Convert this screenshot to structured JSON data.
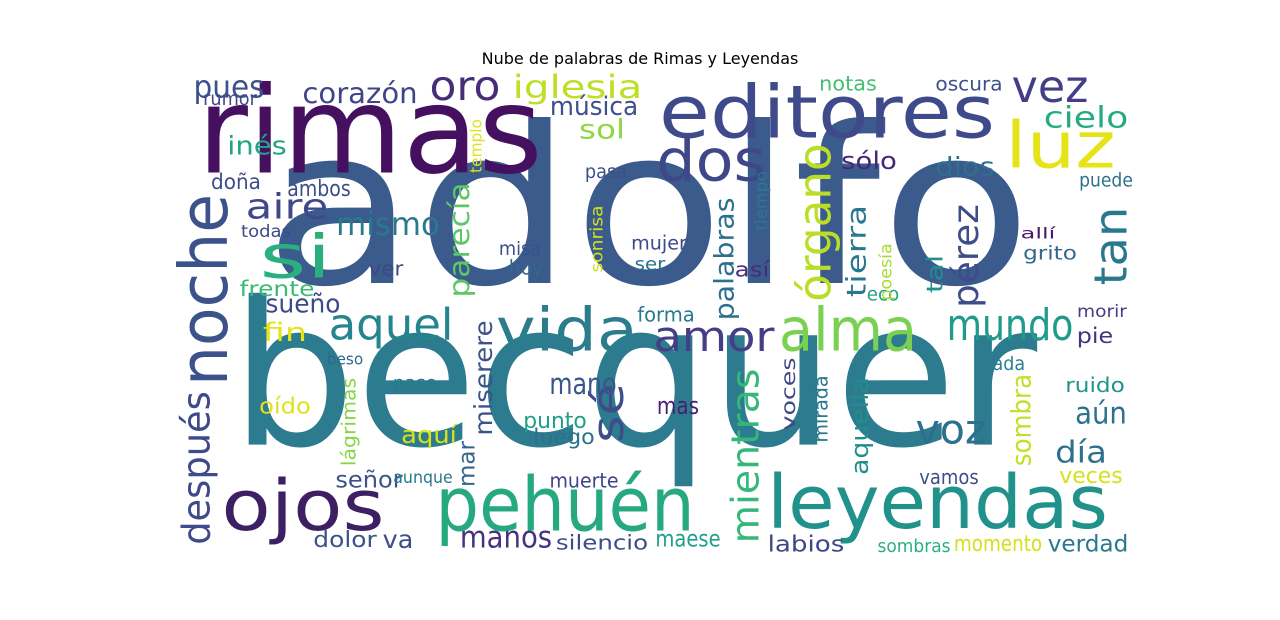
{
  "title": "Nube de palabras de Rimas y Leyendas",
  "words": [
    {
      "text": "adolfo",
      "color": "#3b5b8c"
    },
    {
      "text": "becquer",
      "color": "#2c7b8e"
    },
    {
      "text": "rimas",
      "color": "#45105f"
    },
    {
      "text": "editores",
      "color": "#3f4a8a"
    },
    {
      "text": "luz",
      "color": "#e6e419"
    },
    {
      "text": "pehuén",
      "color": "#26a880"
    },
    {
      "text": "leyendas",
      "color": "#21918c"
    },
    {
      "text": "ojos",
      "color": "#3d1f63"
    },
    {
      "text": "alma",
      "color": "#7ad151"
    },
    {
      "text": "vida",
      "color": "#2b7d8e"
    },
    {
      "text": "noche",
      "color": "#3b528b"
    },
    {
      "text": "dos",
      "color": "#3f4788"
    },
    {
      "text": "si",
      "color": "#2ab07f"
    },
    {
      "text": "voz",
      "color": "#2d708e"
    },
    {
      "text": "vez",
      "color": "#433e85"
    },
    {
      "text": "oro",
      "color": "#472c7a"
    },
    {
      "text": "pues",
      "color": "#3b518b"
    },
    {
      "text": "corazón",
      "color": "#414487"
    },
    {
      "text": "iglesia",
      "color": "#bddf26"
    },
    {
      "text": "aquel",
      "color": "#25858e"
    },
    {
      "text": "mundo",
      "color": "#1e9b8a"
    },
    {
      "text": "amor",
      "color": "#433e85"
    },
    {
      "text": "órgano",
      "color": "#bade28"
    },
    {
      "text": "pérez",
      "color": "#3e4c8a"
    },
    {
      "text": "tan",
      "color": "#2a788e"
    },
    {
      "text": "aún",
      "color": "#2c728e"
    },
    {
      "text": "día",
      "color": "#2d708e"
    },
    {
      "text": "mientras",
      "color": "#35b779"
    },
    {
      "text": "sé",
      "color": "#3d4d8a"
    },
    {
      "text": "después",
      "color": "#3e4a89"
    },
    {
      "text": "cielo",
      "color": "#25ab82"
    },
    {
      "text": "aire",
      "color": "#3f4889"
    },
    {
      "text": "mismo",
      "color": "#2a788e"
    },
    {
      "text": "parecía",
      "color": "#5cc863"
    },
    {
      "text": "palabras",
      "color": "#2d708e"
    },
    {
      "text": "tierra",
      "color": "#2a788e"
    },
    {
      "text": "aquella",
      "color": "#228d8d"
    },
    {
      "text": "sombra",
      "color": "#c0df25"
    },
    {
      "text": "miserere",
      "color": "#3b528b"
    },
    {
      "text": "mano",
      "color": "#3a548c"
    },
    {
      "text": "sueño",
      "color": "#3e4989"
    },
    {
      "text": "música",
      "color": "#3c508b"
    },
    {
      "text": "sol",
      "color": "#8fd744"
    },
    {
      "text": "sólo",
      "color": "#482677"
    },
    {
      "text": "dios",
      "color": "#2e6f8e"
    },
    {
      "text": "inés",
      "color": "#21a585"
    },
    {
      "text": "doña",
      "color": "#3d4e8a"
    },
    {
      "text": "ambos",
      "color": "#3e4c8a"
    },
    {
      "text": "todas",
      "color": "#3e4a89"
    },
    {
      "text": "ver",
      "color": "#3f4788"
    },
    {
      "text": "frente",
      "color": "#3bbb75"
    },
    {
      "text": "fin",
      "color": "#e5e419"
    },
    {
      "text": "beso",
      "color": "#31688e"
    },
    {
      "text": "oído",
      "color": "#e0e31c"
    },
    {
      "text": "lágrimas",
      "color": "#89d548"
    },
    {
      "text": "señor",
      "color": "#3b528b"
    },
    {
      "text": "aunque",
      "color": "#2a788e"
    },
    {
      "text": "mar",
      "color": "#31678e"
    },
    {
      "text": "aquí",
      "color": "#d8e219"
    },
    {
      "text": "punto",
      "color": "#1fa088"
    },
    {
      "text": "luego",
      "color": "#2d708e"
    },
    {
      "text": "paso",
      "color": "#2a788e"
    },
    {
      "text": "manos",
      "color": "#46327e"
    },
    {
      "text": "silencio",
      "color": "#3d4d8a"
    },
    {
      "text": "maese",
      "color": "#1fa088"
    },
    {
      "text": "muerte",
      "color": "#414487"
    },
    {
      "text": "mas",
      "color": "#481f70"
    },
    {
      "text": "dolor",
      "color": "#3b528b"
    },
    {
      "text": "va",
      "color": "#3e4c8a"
    },
    {
      "text": "labios",
      "color": "#404588"
    },
    {
      "text": "sombras",
      "color": "#2ab07f"
    },
    {
      "text": "momento",
      "color": "#d2e21b"
    },
    {
      "text": "verdad",
      "color": "#2a788e"
    },
    {
      "text": "vamos",
      "color": "#3d4e8a"
    },
    {
      "text": "veces",
      "color": "#d2e21b"
    },
    {
      "text": "ruido",
      "color": "#1f958b"
    },
    {
      "text": "cada",
      "color": "#27808e"
    },
    {
      "text": "pie",
      "color": "#46337f"
    },
    {
      "text": "morir",
      "color": "#433e85"
    },
    {
      "text": "eco",
      "color": "#1fa287"
    },
    {
      "text": "tal",
      "color": "#21908d"
    },
    {
      "text": "poesía",
      "color": "#a8db34"
    },
    {
      "text": "grito",
      "color": "#31688e"
    },
    {
      "text": "allí",
      "color": "#481a6c"
    },
    {
      "text": "puede",
      "color": "#2d708e"
    },
    {
      "text": "tiempo",
      "color": "#29798e"
    },
    {
      "text": "así",
      "color": "#472d7b"
    },
    {
      "text": "mujer",
      "color": "#3e4989"
    },
    {
      "text": "ser",
      "color": "#2c728e"
    },
    {
      "text": "sonrisa",
      "color": "#d0e11c"
    },
    {
      "text": "misa",
      "color": "#3b518b"
    },
    {
      "text": "hoy",
      "color": "#31688e"
    },
    {
      "text": "pasa",
      "color": "#3c4f8a"
    },
    {
      "text": "forma",
      "color": "#2a788e"
    },
    {
      "text": "mirada",
      "color": "#2a788e"
    },
    {
      "text": "voces",
      "color": "#3f4889"
    },
    {
      "text": "notas",
      "color": "#44bf70"
    },
    {
      "text": "oscura",
      "color": "#3b518b"
    },
    {
      "text": "rumor",
      "color": "#3f4889"
    },
    {
      "text": "templo",
      "color": "#dde318"
    }
  ]
}
